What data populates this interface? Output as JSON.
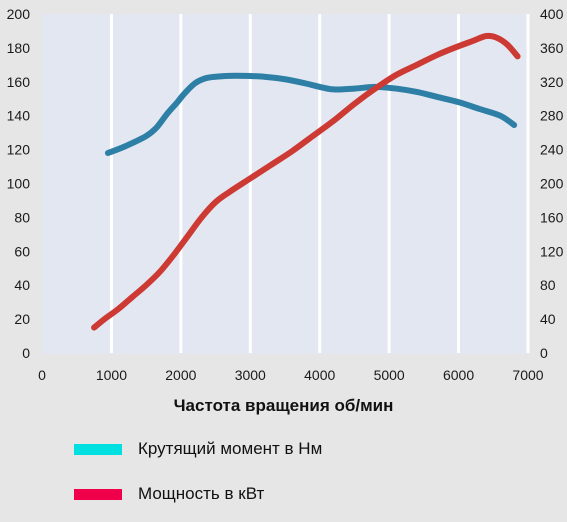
{
  "chart_data": {
    "type": "line",
    "xlabel": "Частота вращения об/мин",
    "x_ticks": [
      0,
      1000,
      2000,
      3000,
      4000,
      5000,
      6000,
      7000
    ],
    "xlim": [
      0,
      7000
    ],
    "y_left_ticks": [
      0,
      20,
      40,
      60,
      80,
      100,
      120,
      140,
      160,
      180,
      200
    ],
    "ylim_left": [
      0,
      200
    ],
    "y_right_ticks": [
      0,
      40,
      80,
      120,
      160,
      200,
      240,
      280,
      320,
      360,
      400
    ],
    "ylim_right": [
      0,
      400
    ],
    "grid": "vertical",
    "series": [
      {
        "name": "Крутящий момент в Нм",
        "axis": "right",
        "color": "#2e7fa5",
        "x": [
          950,
          1200,
          1500,
          1650,
          1800,
          1950,
          2050,
          2200,
          2350,
          2500,
          2700,
          2900,
          3200,
          3500,
          3800,
          4000,
          4200,
          4500,
          4800,
          5100,
          5400,
          5700,
          6000,
          6300,
          6600,
          6800
        ],
        "y": [
          236,
          244,
          256,
          266,
          282,
          296,
          306,
          318,
          324,
          326,
          327,
          327,
          326,
          323,
          318,
          314,
          311,
          312,
          314,
          312,
          308,
          302,
          296,
          288,
          280,
          269
        ]
      },
      {
        "name": "Мощность в кВт",
        "axis": "left",
        "color": "#cc3a33",
        "x": [
          750,
          900,
          1100,
          1300,
          1500,
          1700,
          1900,
          2100,
          2300,
          2500,
          2700,
          3000,
          3300,
          3600,
          3900,
          4200,
          4500,
          4800,
          5100,
          5400,
          5700,
          6000,
          6200,
          6400,
          6550,
          6700,
          6850
        ],
        "y": [
          15,
          20,
          26,
          33,
          40,
          48,
          58,
          69,
          80,
          89,
          95,
          103,
          111,
          119,
          128,
          137,
          147,
          156,
          164,
          170,
          176,
          181,
          184,
          187,
          186,
          182,
          175
        ]
      }
    ]
  },
  "legend": [
    {
      "label": "Крутящий момент в Нм",
      "color": "#00e0e0"
    },
    {
      "label": "Мощность в кВт",
      "color": "#f0004a"
    }
  ]
}
